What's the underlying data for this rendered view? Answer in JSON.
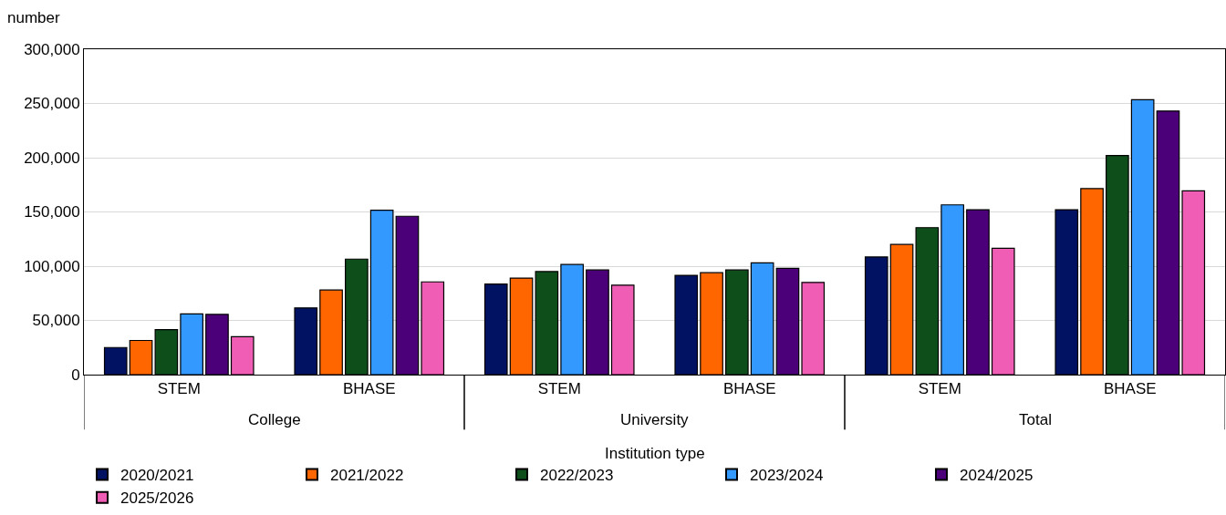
{
  "chart_data": {
    "type": "bar",
    "ylabel": "number",
    "xlabel": "Institution type",
    "categories": [
      "STEM",
      "BHASE",
      "STEM",
      "BHASE",
      "STEM",
      "BHASE"
    ],
    "annotations": [
      "College",
      "University",
      "Total"
    ],
    "series": [
      {
        "name": "2020/2021",
        "color": "#001261",
        "values": [
          25000,
          61500,
          83500,
          91500,
          108500,
          152000
        ]
      },
      {
        "name": "2021/2022",
        "color": "#ff6600",
        "values": [
          31500,
          78000,
          89000,
          94000,
          120000,
          171500
        ]
      },
      {
        "name": "2022/2023",
        "color": "#0d4e1b",
        "values": [
          41500,
          106500,
          95000,
          96500,
          135500,
          202000
        ]
      },
      {
        "name": "2023/2024",
        "color": "#3399ff",
        "values": [
          56000,
          151500,
          101500,
          103000,
          156500,
          253500
        ]
      },
      {
        "name": "2024/2025",
        "color": "#4b0079",
        "values": [
          55500,
          146000,
          96500,
          98000,
          152000,
          243000
        ]
      },
      {
        "name": "2025/2026",
        "color": "#ef5db5",
        "values": [
          35000,
          85500,
          82500,
          85000,
          116500,
          169500
        ]
      }
    ],
    "ylim": [
      0,
      300000
    ],
    "yticks": [
      0,
      {
        "value": 50000,
        "label": "50,000"
      },
      {
        "value": 100000,
        "label": "100,000"
      },
      {
        "value": 150000,
        "label": "150,000"
      },
      {
        "value": 200000,
        "label": "200,000"
      },
      {
        "value": 250000,
        "label": "250,000"
      },
      {
        "value": 300000,
        "label": "300,000"
      }
    ],
    "grid": "y",
    "legend": "bottom"
  }
}
